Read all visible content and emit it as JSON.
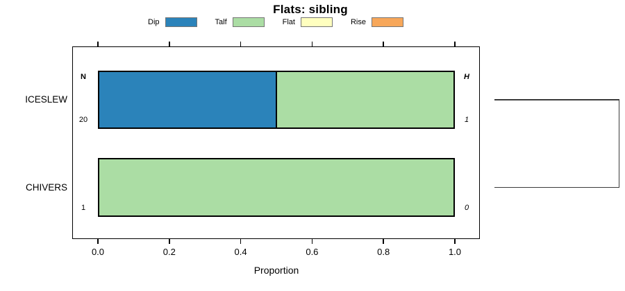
{
  "chart_data": {
    "type": "bar",
    "orientation": "horizontal",
    "stacked": true,
    "title": "Flats: sibling",
    "xlabel": "Proportion",
    "xlim": [
      0,
      1
    ],
    "xticks": [
      0,
      0.2,
      0.4,
      0.6,
      0.8,
      1.0
    ],
    "xtick_labels": [
      "0.0",
      "0.2",
      "0.4",
      "0.6",
      "0.8",
      "1.0"
    ],
    "grid": false,
    "legend_position": "top",
    "categories": [
      "ICESLEW",
      "CHIVERS"
    ],
    "series": [
      {
        "name": "Dip",
        "color": "#2B83BA",
        "values": [
          0.5,
          0
        ]
      },
      {
        "name": "Talf",
        "color": "#ABDDA4",
        "values": [
          0.5,
          1.0
        ]
      },
      {
        "name": "Flat",
        "color": "#FFFFBF",
        "values": [
          0,
          0
        ]
      },
      {
        "name": "Rise",
        "color": "#F7A75A",
        "values": [
          0,
          0
        ]
      }
    ],
    "annotations": {
      "left_header": "N",
      "left_values": [
        "20",
        "1"
      ],
      "right_header": "H",
      "right_values": [
        "1",
        "0"
      ]
    },
    "dendrogram": {
      "description": "bracket joining the two category rows in the right margin",
      "rows_joined": [
        "ICESLEW",
        "CHIVERS"
      ]
    }
  }
}
